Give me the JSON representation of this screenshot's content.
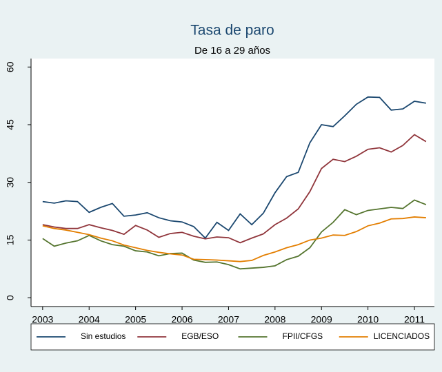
{
  "chart_data": {
    "type": "line",
    "title": "Tasa de paro",
    "subtitle": "De 16 a 29 años",
    "x": [
      2003,
      2003.25,
      2003.5,
      2003.75,
      2004,
      2004.25,
      2004.5,
      2004.75,
      2005,
      2005.25,
      2005.5,
      2005.75,
      2006,
      2006.25,
      2006.5,
      2006.75,
      2007,
      2007.25,
      2007.5,
      2007.75,
      2008,
      2008.25,
      2008.5,
      2008.75,
      2009,
      2009.25,
      2009.5,
      2009.75,
      2010,
      2010.25,
      2010.5,
      2010.75,
      2011,
      2011.25
    ],
    "series": [
      {
        "name": "Sin estudios",
        "color": "#1a476f",
        "values": [
          25,
          24.6,
          25.2,
          25,
          22.2,
          23.5,
          24.5,
          21.2,
          21.5,
          22.1,
          20.8,
          20,
          19.7,
          18.5,
          15.5,
          19.6,
          17.5,
          21.8,
          19,
          22,
          27.3,
          31.5,
          32.6,
          40.3,
          45,
          44.5,
          47.3,
          50.3,
          52.2,
          52.1,
          48.8,
          49.1,
          51.1,
          50.6
        ]
      },
      {
        "name": "EGB/ESO",
        "color": "#90353b",
        "values": [
          19,
          18.4,
          18,
          18,
          19,
          18.2,
          17.5,
          16.5,
          18.8,
          17.6,
          15.7,
          16.7,
          17,
          16,
          15.3,
          15.8,
          15.6,
          14.3,
          15.5,
          16.6,
          19,
          20.7,
          23.1,
          27.6,
          33.6,
          36,
          35.4,
          36.8,
          38.6,
          39,
          37.9,
          39.6,
          42.4,
          40.6
        ]
      },
      {
        "name": "FPII/CFGS",
        "color": "#55752f",
        "values": [
          15.4,
          13.4,
          14.2,
          14.8,
          16.2,
          14.8,
          13.8,
          13.4,
          12.2,
          11.9,
          10.9,
          11.5,
          11.6,
          9.8,
          9.2,
          9.3,
          8.6,
          7.5,
          7.7,
          7.9,
          8.3,
          9.9,
          10.8,
          13,
          17.1,
          19.6,
          22.9,
          21.6,
          22.7,
          23.1,
          23.5,
          23.2,
          25.4,
          24.2
        ]
      },
      {
        "name": "LICENCIADOS",
        "color": "#e37e00",
        "values": [
          18.7,
          18,
          17.6,
          17,
          16.4,
          15.5,
          14.8,
          13.7,
          13,
          12.3,
          11.8,
          11.4,
          11.1,
          10,
          9.9,
          9.8,
          9.6,
          9.4,
          9.7,
          11,
          11.9,
          13,
          13.8,
          15,
          15.5,
          16.3,
          16.2,
          17.2,
          18.7,
          19.4,
          20.5,
          20.6,
          21,
          20.8
        ]
      }
    ],
    "xlim": [
      2002.75,
      2011.43
    ],
    "xticks": [
      2003,
      2004,
      2005,
      2006,
      2007,
      2008,
      2009,
      2010,
      2011
    ],
    "ylim": [
      -2.3,
      62.2
    ],
    "yticks": [
      0,
      15,
      30,
      45,
      60
    ],
    "grid": false,
    "legend": "bottom"
  }
}
